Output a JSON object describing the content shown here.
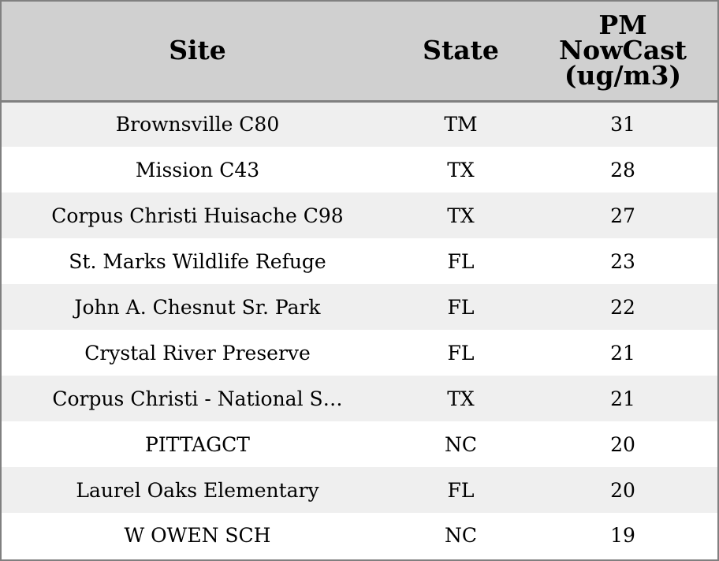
{
  "chart_data": {
    "type": "table",
    "columns": [
      "Site",
      "State",
      "PM NowCast (ug/m3)"
    ],
    "header_lines": {
      "site": "Site",
      "state": "State",
      "pm": [
        "PM",
        "NowCast",
        "(ug/m3)"
      ]
    },
    "rows": [
      {
        "site": "Brownsville C80",
        "state": "TM",
        "pm": 31
      },
      {
        "site": "Mission C43",
        "state": "TX",
        "pm": 28
      },
      {
        "site": "Corpus Christi Huisache C98",
        "state": "TX",
        "pm": 27
      },
      {
        "site": "St. Marks Wildlife Refuge",
        "state": "FL",
        "pm": 23
      },
      {
        "site": "John A. Chesnut Sr. Park",
        "state": "FL",
        "pm": 22
      },
      {
        "site": "Crystal River Preserve",
        "state": "FL",
        "pm": 21
      },
      {
        "site": "Corpus Christi - National S…",
        "state": "TX",
        "pm": 21
      },
      {
        "site": "PITTAGCT",
        "state": "NC",
        "pm": 20
      },
      {
        "site": "Laurel Oaks Elementary",
        "state": "FL",
        "pm": 20
      },
      {
        "site": "W OWEN SCH",
        "state": "NC",
        "pm": 19
      }
    ],
    "colors": {
      "header_bg": "#d0d0d0",
      "row_odd_bg": "#efefef",
      "row_even_bg": "#ffffff",
      "border": "#808080"
    }
  }
}
